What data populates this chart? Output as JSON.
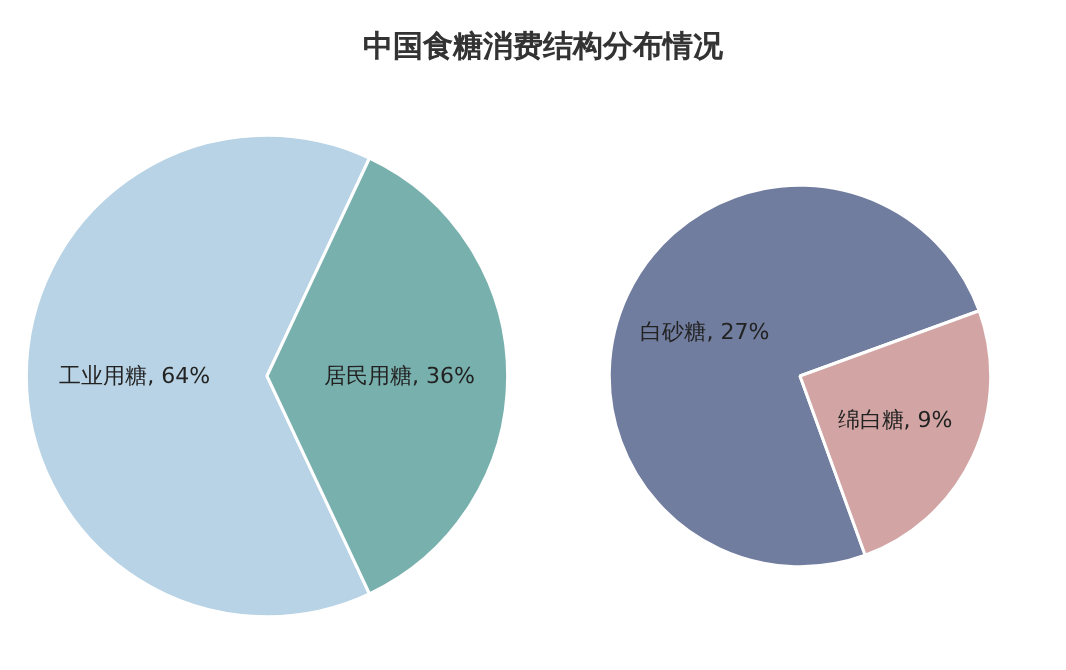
{
  "chart_data": [
    {
      "type": "pie",
      "title": "中国食糖消费结构分布情况",
      "categories": [
        "工业用糖",
        "居民用糖"
      ],
      "values": [
        64,
        36
      ],
      "colors": [
        "#b8d3e5",
        "#78b0ad"
      ],
      "value_labels": [
        "64%",
        "36%"
      ]
    },
    {
      "type": "pie",
      "categories": [
        "白砂糖",
        "绵白糖"
      ],
      "values": [
        27,
        9
      ],
      "colors": [
        "#717d9f",
        "#d2a5a4"
      ],
      "value_labels": [
        "27%",
        "9%"
      ]
    }
  ]
}
